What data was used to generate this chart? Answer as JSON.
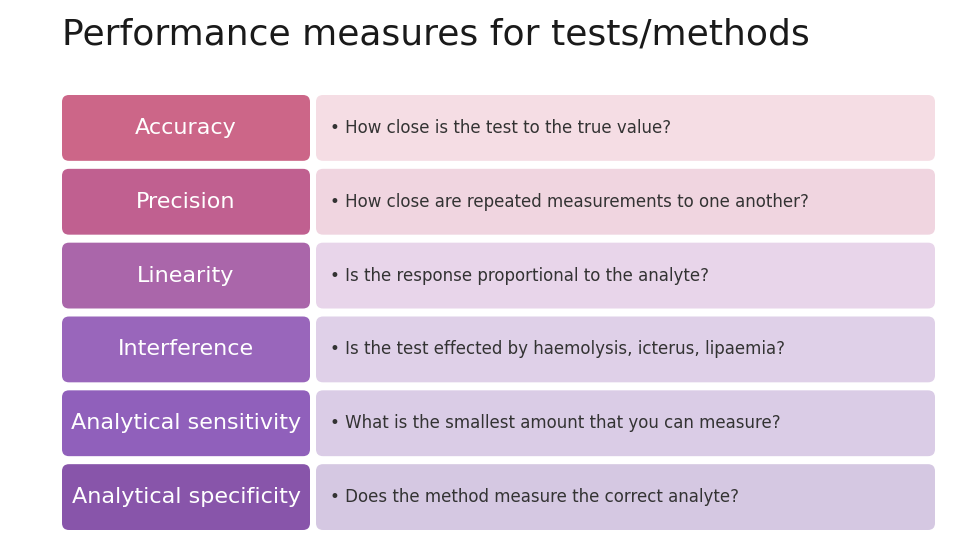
{
  "title": "Performance measures for tests/methods",
  "title_fontsize": 26,
  "title_color": "#1a1a1a",
  "background_color": "#ffffff",
  "rows": [
    {
      "label": "Accuracy",
      "description": "• How close is the test to the true value?",
      "label_bg": "#cc6688",
      "desc_bg": "#f5dde4"
    },
    {
      "label": "Precision",
      "description": "• How close are repeated measurements to one another?",
      "label_bg": "#c06090",
      "desc_bg": "#f0d5e0"
    },
    {
      "label": "Linearity",
      "description": "• Is the response proportional to the analyte?",
      "label_bg": "#aa66aa",
      "desc_bg": "#e8d5ea"
    },
    {
      "label": "Interference",
      "description": "• Is the test effected by haemolysis, icterus, lipaemia?",
      "label_bg": "#9966bb",
      "desc_bg": "#dfd0e8"
    },
    {
      "label": "Analytical sensitivity",
      "description": "• What is the smallest amount that you can measure?",
      "label_bg": "#9060bb",
      "desc_bg": "#dacce6"
    },
    {
      "label": "Analytical specificity",
      "description": "• Does the method measure the correct analyte?",
      "label_bg": "#8855aa",
      "desc_bg": "#d5c8e2"
    }
  ],
  "label_fontsize": 16,
  "desc_fontsize": 12,
  "label_text_color": "#ffffff",
  "desc_text_color": "#333333"
}
